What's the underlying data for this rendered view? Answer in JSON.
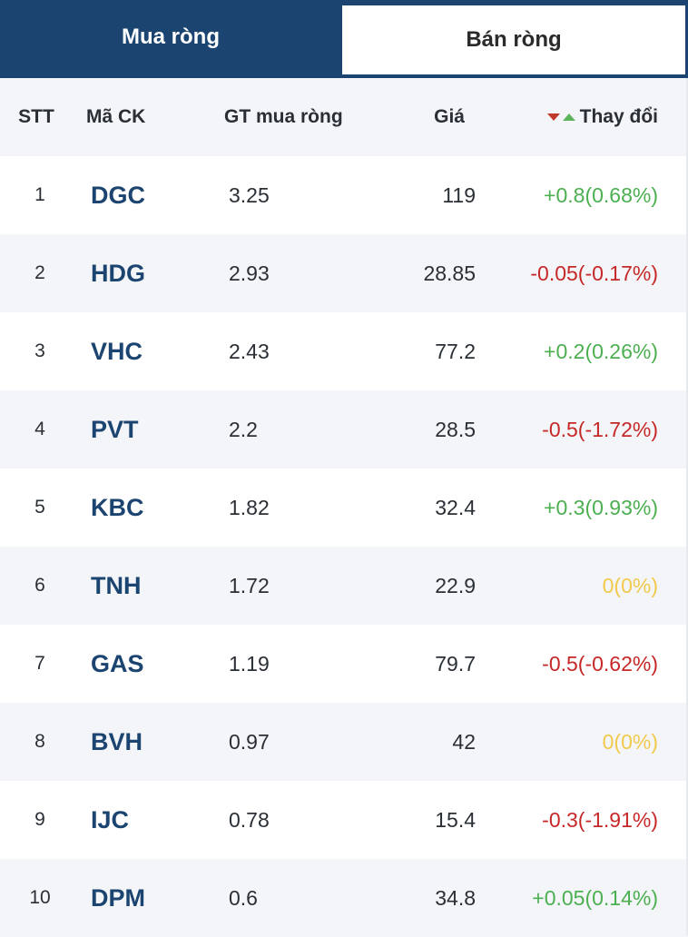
{
  "tabs": {
    "buy": "Mua ròng",
    "sell": "Bán ròng"
  },
  "headers": {
    "stt": "STT",
    "code": "Mã CK",
    "value": "GT mua ròng",
    "price": "Giá",
    "change": "Thay đổi"
  },
  "colors": {
    "navy": "#1c4470",
    "up": "#4caf50",
    "down": "#c62828",
    "flat": "#f2c94c"
  },
  "rows": [
    {
      "stt": "1",
      "code": "DGC",
      "value": "3.25",
      "price": "119",
      "change": "+0.8(0.68%)",
      "trend": "up"
    },
    {
      "stt": "2",
      "code": "HDG",
      "value": "2.93",
      "price": "28.85",
      "change": "-0.05(-0.17%)",
      "trend": "down"
    },
    {
      "stt": "3",
      "code": "VHC",
      "value": "2.43",
      "price": "77.2",
      "change": "+0.2(0.26%)",
      "trend": "up"
    },
    {
      "stt": "4",
      "code": "PVT",
      "value": "2.2",
      "price": "28.5",
      "change": "-0.5(-1.72%)",
      "trend": "down"
    },
    {
      "stt": "5",
      "code": "KBC",
      "value": "1.82",
      "price": "32.4",
      "change": "+0.3(0.93%)",
      "trend": "up"
    },
    {
      "stt": "6",
      "code": "TNH",
      "value": "1.72",
      "price": "22.9",
      "change": "0(0%)",
      "trend": "flat"
    },
    {
      "stt": "7",
      "code": "GAS",
      "value": "1.19",
      "price": "79.7",
      "change": "-0.5(-0.62%)",
      "trend": "down"
    },
    {
      "stt": "8",
      "code": "BVH",
      "value": "0.97",
      "price": "42",
      "change": "0(0%)",
      "trend": "flat"
    },
    {
      "stt": "9",
      "code": "IJC",
      "value": "0.78",
      "price": "15.4",
      "change": "-0.3(-1.91%)",
      "trend": "down"
    },
    {
      "stt": "10",
      "code": "DPM",
      "value": "0.6",
      "price": "34.8",
      "change": "+0.05(0.14%)",
      "trend": "up"
    }
  ]
}
